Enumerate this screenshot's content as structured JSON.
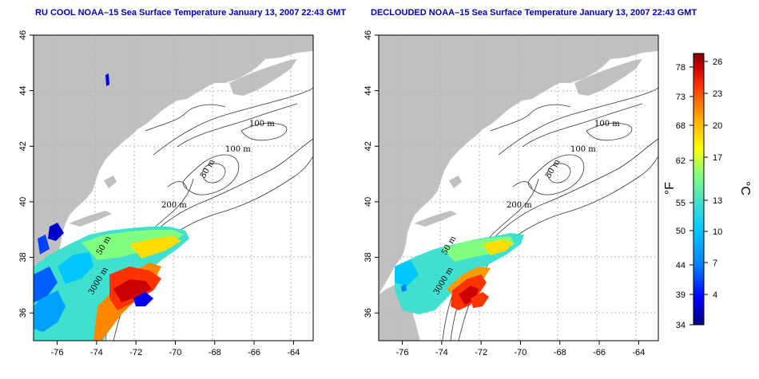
{
  "panels": [
    {
      "title": "RU COOL NOAA–15 Sea Surface Temperature January 13, 2007 22:43 GMT",
      "x_ticks": [
        "-76",
        "-74",
        "-72",
        "-70",
        "-68",
        "-66",
        "-64"
      ],
      "y_ticks": [
        "36",
        "38",
        "40",
        "42",
        "44",
        "46"
      ],
      "contour_labels": [
        "100 m",
        "100 m",
        "50 m",
        "200 m",
        "50 m",
        "3000 m"
      ]
    },
    {
      "title": "DECLOUDED NOAA–15 Sea Surface Temperature January 13, 2007 22:43 GMT",
      "x_ticks": [
        "-76",
        "-74",
        "-72",
        "-70",
        "-68",
        "-66",
        "-64"
      ],
      "y_ticks": [
        "36",
        "38",
        "40",
        "42",
        "44",
        "46"
      ],
      "contour_labels": [
        "100 m",
        "100 m",
        "50 m",
        "200 m",
        "50 m",
        "3000 m"
      ]
    }
  ],
  "map_extent": {
    "lon": [
      -77.2,
      -63.0
    ],
    "lat": [
      35.0,
      46.0
    ]
  },
  "colorbar": {
    "fahrenheit_ticks": [
      "78",
      "73",
      "68",
      "62",
      "55",
      "50",
      "44",
      "39",
      "34"
    ],
    "celsius_ticks": [
      "26",
      "23",
      "20",
      "17",
      "13",
      "10",
      "7",
      "4"
    ],
    "fahrenheit_label": "°F",
    "celsius_label": "°C",
    "colors": [
      "#000080",
      "#0000ff",
      "#0080ff",
      "#00c8ff",
      "#40e0d0",
      "#80ff80",
      "#ffff00",
      "#ff9900",
      "#ff3300",
      "#cc0000",
      "#800000"
    ]
  },
  "colors": {
    "land": "#c0c0c0",
    "title": "#0000b3",
    "grid": "#b4b4b4"
  }
}
